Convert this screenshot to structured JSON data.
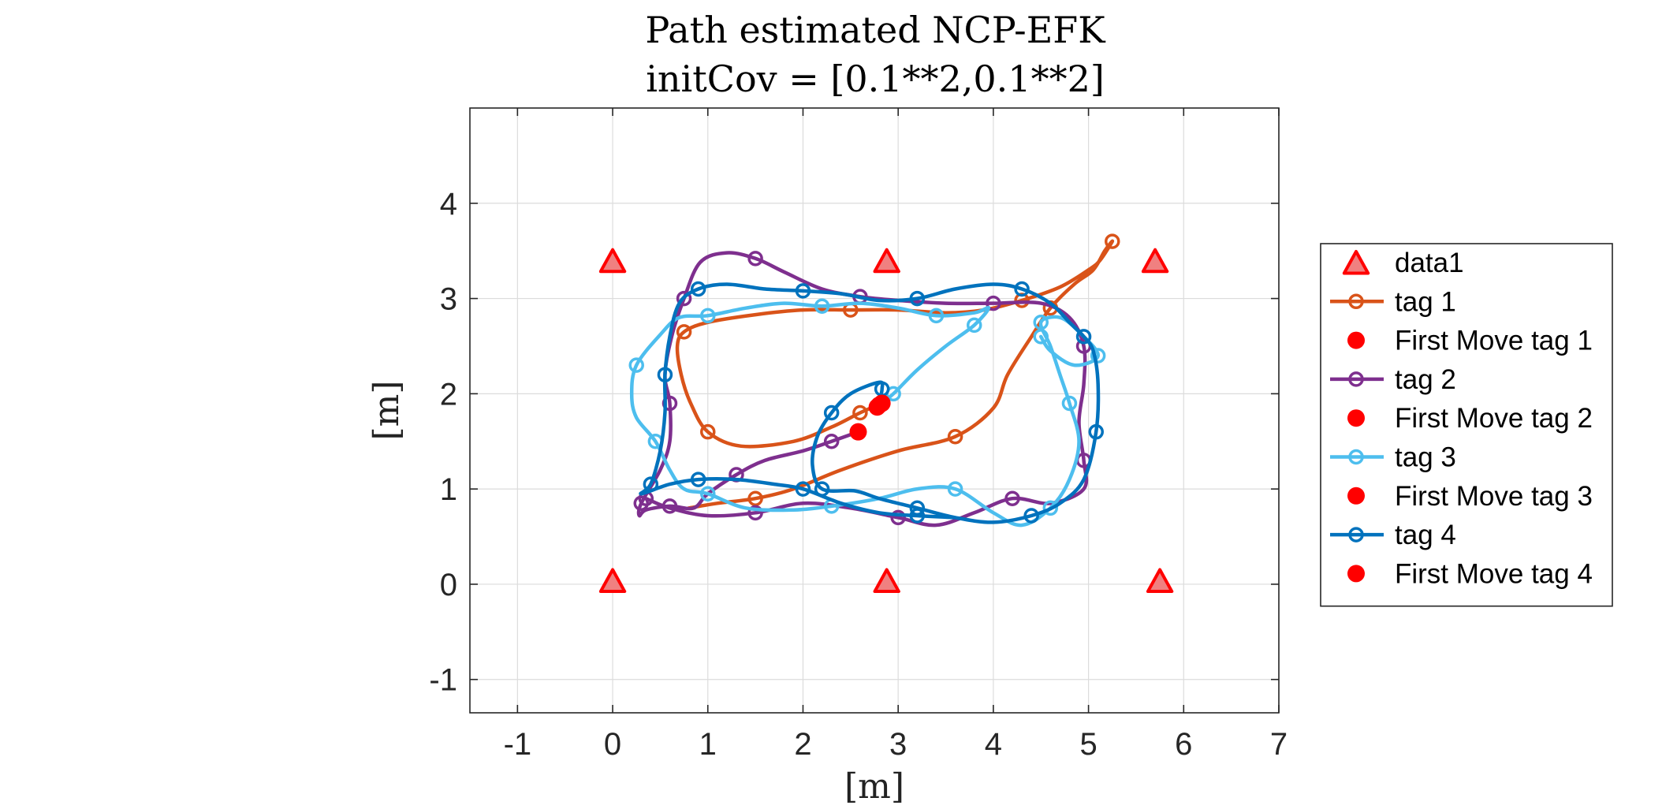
{
  "chart_data": {
    "type": "line",
    "title": [
      "Path estimated NCP-EFK",
      "initCov = [0.1**2,0.1**2]"
    ],
    "xlabel": "[m]",
    "ylabel": "[m]",
    "xlim": [
      -1.5,
      7
    ],
    "ylim": [
      -1.35,
      5
    ],
    "xticks": [
      -1,
      0,
      1,
      2,
      3,
      4,
      5,
      6,
      7
    ],
    "yticks": [
      -1,
      0,
      1,
      2,
      3,
      4
    ],
    "xtick_labels": [
      "-1",
      "0",
      "1",
      "2",
      "3",
      "4",
      "5",
      "6",
      "7"
    ],
    "ytick_labels": [
      "-1",
      "0",
      "1",
      "2",
      "3",
      "4"
    ],
    "grid": true,
    "legend_position": "outside-right",
    "anchors": {
      "name": "data1",
      "color": "#ff0000",
      "marker": "triangle",
      "points": [
        [
          0,
          3.38
        ],
        [
          2.88,
          3.38
        ],
        [
          5.7,
          3.38
        ],
        [
          0,
          0.02
        ],
        [
          2.88,
          0.02
        ],
        [
          5.75,
          0.02
        ]
      ]
    },
    "series": [
      {
        "name": "tag 1",
        "color": "#d95319",
        "points": [
          [
            2.83,
            1.9
          ],
          [
            2.6,
            1.8
          ],
          [
            2.3,
            1.65
          ],
          [
            1.9,
            1.5
          ],
          [
            1.35,
            1.45
          ],
          [
            1.0,
            1.6
          ],
          [
            0.82,
            1.9
          ],
          [
            0.72,
            2.2
          ],
          [
            0.68,
            2.5
          ],
          [
            0.75,
            2.65
          ],
          [
            1.0,
            2.75
          ],
          [
            1.5,
            2.83
          ],
          [
            2.0,
            2.88
          ],
          [
            2.5,
            2.88
          ],
          [
            3.0,
            2.88
          ],
          [
            3.5,
            2.85
          ],
          [
            3.9,
            2.88
          ],
          [
            4.3,
            2.98
          ],
          [
            4.7,
            3.12
          ],
          [
            5.0,
            3.3
          ],
          [
            5.12,
            3.4
          ],
          [
            5.25,
            3.6
          ],
          [
            5.17,
            3.5
          ],
          [
            5.05,
            3.3
          ],
          [
            4.85,
            3.15
          ],
          [
            4.6,
            2.9
          ],
          [
            4.4,
            2.6
          ],
          [
            4.15,
            2.2
          ],
          [
            4.0,
            1.85
          ],
          [
            3.6,
            1.55
          ],
          [
            3.0,
            1.4
          ],
          [
            2.4,
            1.2
          ],
          [
            1.9,
            1.0
          ],
          [
            1.5,
            0.9
          ],
          [
            1.1,
            0.85
          ],
          [
            0.8,
            0.8
          ]
        ],
        "marker_every": 4
      },
      {
        "name": "tag 2",
        "color": "#7e2f8e",
        "points": [
          [
            2.58,
            1.6
          ],
          [
            2.3,
            1.5
          ],
          [
            2.0,
            1.4
          ],
          [
            1.6,
            1.3
          ],
          [
            1.3,
            1.15
          ],
          [
            1.0,
            0.95
          ],
          [
            0.85,
            0.8
          ],
          [
            0.6,
            0.82
          ],
          [
            0.35,
            0.78
          ],
          [
            0.28,
            0.72
          ],
          [
            0.3,
            0.85
          ],
          [
            0.5,
            1.2
          ],
          [
            0.6,
            1.5
          ],
          [
            0.6,
            1.9
          ],
          [
            0.55,
            2.2
          ],
          [
            0.62,
            2.6
          ],
          [
            0.75,
            3.0
          ],
          [
            0.92,
            3.38
          ],
          [
            1.2,
            3.48
          ],
          [
            1.5,
            3.42
          ],
          [
            1.8,
            3.28
          ],
          [
            2.2,
            3.1
          ],
          [
            2.6,
            3.02
          ],
          [
            3.0,
            2.98
          ],
          [
            3.5,
            2.95
          ],
          [
            4.0,
            2.95
          ],
          [
            4.5,
            2.95
          ],
          [
            4.8,
            2.8
          ],
          [
            4.95,
            2.5
          ],
          [
            4.95,
            2.1
          ],
          [
            4.9,
            1.7
          ],
          [
            4.95,
            1.3
          ],
          [
            4.95,
            1.0
          ],
          [
            4.6,
            0.85
          ],
          [
            4.2,
            0.9
          ],
          [
            3.8,
            0.75
          ],
          [
            3.4,
            0.62
          ],
          [
            3.0,
            0.7
          ],
          [
            2.5,
            0.8
          ],
          [
            2.0,
            0.85
          ],
          [
            1.5,
            0.75
          ],
          [
            1.0,
            0.72
          ],
          [
            0.6,
            0.8
          ],
          [
            0.35,
            0.9
          ]
        ],
        "marker_every": 3
      },
      {
        "name": "tag 3",
        "color": "#4dbeee",
        "points": [
          [
            2.8,
            1.88
          ],
          [
            2.95,
            2.0
          ],
          [
            3.2,
            2.25
          ],
          [
            3.5,
            2.5
          ],
          [
            3.8,
            2.72
          ],
          [
            3.95,
            2.9
          ],
          [
            3.8,
            2.85
          ],
          [
            3.4,
            2.82
          ],
          [
            3.0,
            2.9
          ],
          [
            2.6,
            2.95
          ],
          [
            2.2,
            2.92
          ],
          [
            1.8,
            2.95
          ],
          [
            1.4,
            2.9
          ],
          [
            1.0,
            2.82
          ],
          [
            0.7,
            2.8
          ],
          [
            0.5,
            2.62
          ],
          [
            0.25,
            2.3
          ],
          [
            0.2,
            2.0
          ],
          [
            0.25,
            1.75
          ],
          [
            0.45,
            1.5
          ],
          [
            0.6,
            1.2
          ],
          [
            0.75,
            1.0
          ],
          [
            1.0,
            0.95
          ],
          [
            1.4,
            0.8
          ],
          [
            1.9,
            0.78
          ],
          [
            2.3,
            0.82
          ],
          [
            2.8,
            0.9
          ],
          [
            3.2,
            1.0
          ],
          [
            3.6,
            1.0
          ],
          [
            4.0,
            0.75
          ],
          [
            4.3,
            0.62
          ],
          [
            4.6,
            0.8
          ],
          [
            4.8,
            1.1
          ],
          [
            4.9,
            1.5
          ],
          [
            4.8,
            1.9
          ],
          [
            4.7,
            2.2
          ],
          [
            4.6,
            2.5
          ],
          [
            4.5,
            2.75
          ],
          [
            4.7,
            2.8
          ],
          [
            4.9,
            2.65
          ],
          [
            5.1,
            2.4
          ],
          [
            4.85,
            2.3
          ],
          [
            4.6,
            2.45
          ],
          [
            4.5,
            2.6
          ]
        ],
        "marker_every": 3
      },
      {
        "name": "tag 4",
        "color": "#0072bd",
        "points": [
          [
            2.8,
            1.9
          ],
          [
            2.83,
            2.05
          ],
          [
            2.8,
            2.12
          ],
          [
            2.5,
            2.0
          ],
          [
            2.3,
            1.8
          ],
          [
            2.15,
            1.55
          ],
          [
            2.1,
            1.25
          ],
          [
            2.2,
            1.0
          ],
          [
            2.55,
            0.98
          ],
          [
            2.8,
            0.9
          ],
          [
            3.2,
            0.8
          ],
          [
            3.6,
            0.7
          ],
          [
            4.0,
            0.65
          ],
          [
            4.4,
            0.72
          ],
          [
            4.7,
            0.85
          ],
          [
            4.95,
            1.1
          ],
          [
            5.08,
            1.6
          ],
          [
            5.1,
            2.1
          ],
          [
            5.05,
            2.45
          ],
          [
            4.95,
            2.6
          ],
          [
            4.8,
            2.75
          ],
          [
            4.6,
            2.95
          ],
          [
            4.3,
            3.1
          ],
          [
            4.0,
            3.15
          ],
          [
            3.6,
            3.1
          ],
          [
            3.2,
            3.0
          ],
          [
            2.8,
            2.98
          ],
          [
            2.4,
            3.05
          ],
          [
            2.0,
            3.08
          ],
          [
            1.6,
            3.1
          ],
          [
            1.2,
            3.15
          ],
          [
            0.9,
            3.1
          ],
          [
            0.7,
            2.95
          ],
          [
            0.6,
            2.6
          ],
          [
            0.55,
            2.2
          ],
          [
            0.55,
            1.8
          ],
          [
            0.5,
            1.4
          ],
          [
            0.4,
            1.05
          ],
          [
            0.3,
            0.95
          ],
          [
            0.6,
            1.05
          ],
          [
            0.9,
            1.1
          ],
          [
            1.3,
            1.1
          ],
          [
            1.7,
            1.05
          ],
          [
            2.0,
            1.0
          ],
          [
            2.4,
            0.85
          ],
          [
            2.8,
            0.75
          ],
          [
            3.2,
            0.72
          ],
          [
            3.6,
            0.7
          ]
        ],
        "marker_every": 3
      }
    ],
    "first_moves": [
      {
        "name": "First Move tag 1",
        "color": "#ff0000",
        "point": [
          2.83,
          1.9
        ]
      },
      {
        "name": "First Move tag 2",
        "color": "#ff0000",
        "point": [
          2.58,
          1.6
        ]
      },
      {
        "name": "First Move tag 3",
        "color": "#ff0000",
        "point": [
          2.8,
          1.88
        ]
      },
      {
        "name": "First Move tag 4",
        "color": "#ff0000",
        "point": [
          2.78,
          1.86
        ]
      }
    ],
    "legend": [
      "data1",
      "tag 1",
      "First Move tag 1",
      "tag 2",
      "First Move tag 2",
      "tag 3",
      "First Move tag 3",
      "tag 4",
      "First Move tag 4"
    ]
  }
}
